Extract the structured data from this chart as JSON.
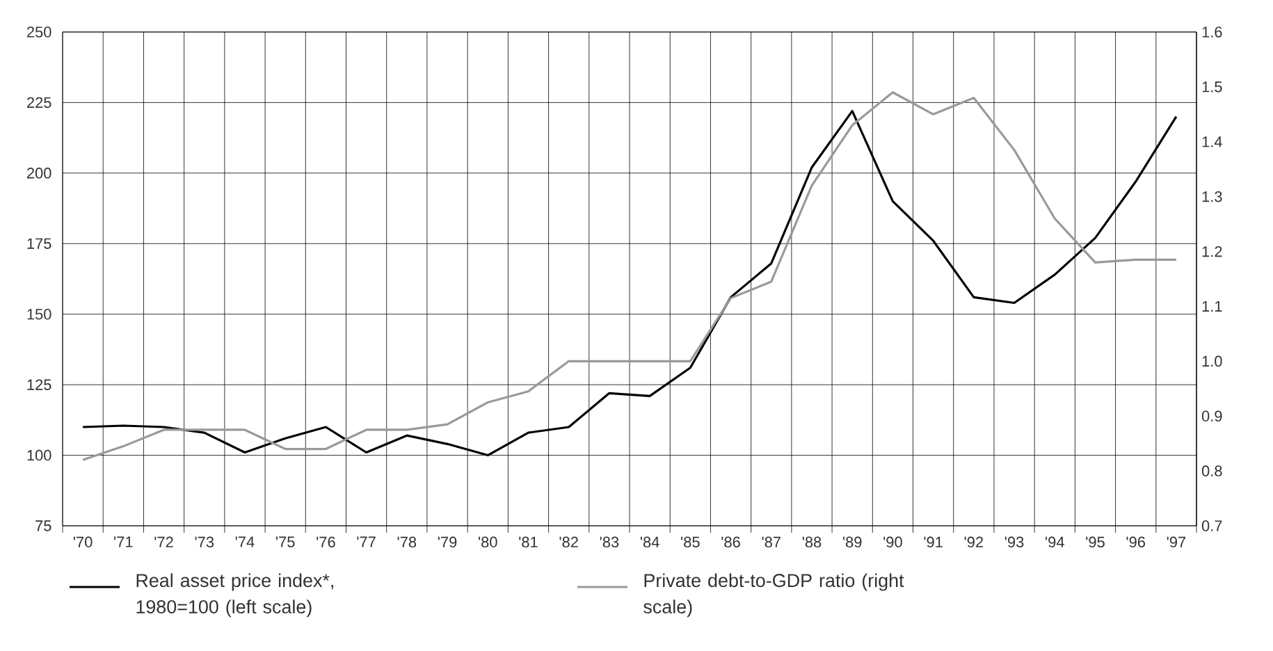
{
  "chart_data": {
    "type": "line",
    "categories": [
      "'70",
      "'71",
      "'72",
      "'73",
      "'74",
      "'75",
      "'76",
      "'77",
      "'78",
      "'79",
      "'80",
      "'81",
      "'82",
      "'83",
      "'84",
      "'85",
      "'86",
      "'87",
      "'88",
      "'89",
      "'90",
      "'91",
      "'92",
      "'93",
      "'94",
      "'95",
      "'96",
      "'97"
    ],
    "series": [
      {
        "name": "Real asset price index*, 1980=100 (left scale)",
        "color": "#000000",
        "values": [
          110,
          110.5,
          110,
          108,
          101,
          106,
          110,
          101,
          107,
          104,
          100,
          108,
          110,
          122,
          121,
          131,
          156,
          168,
          202,
          222,
          190,
          176,
          156,
          154,
          164,
          177,
          197,
          220
        ]
      },
      {
        "name": "Private debt-to-GDP ratio (right scale)",
        "color": "#999999",
        "axis": "y2",
        "values": [
          0.82,
          0.845,
          0.875,
          0.875,
          0.875,
          0.84,
          0.84,
          0.875,
          0.875,
          0.885,
          0.925,
          0.945,
          1.0,
          1.0,
          1.0,
          1.0,
          1.115,
          1.145,
          1.32,
          1.43,
          1.49,
          1.45,
          1.48,
          1.385,
          1.26,
          1.18,
          1.185,
          1.185
        ]
      }
    ],
    "ylim": [
      75,
      250
    ],
    "yticks": [
      75,
      100,
      125,
      150,
      175,
      200,
      225,
      250
    ],
    "y2lim": [
      0.7,
      1.6
    ],
    "y2ticks": [
      0.7,
      0.8,
      0.9,
      {
        "value": 1.0,
        "label": "1.0"
      },
      1.1,
      1.2,
      1.3,
      1.4,
      1.5,
      1.6
    ],
    "grid": true,
    "legend": "bottom"
  }
}
